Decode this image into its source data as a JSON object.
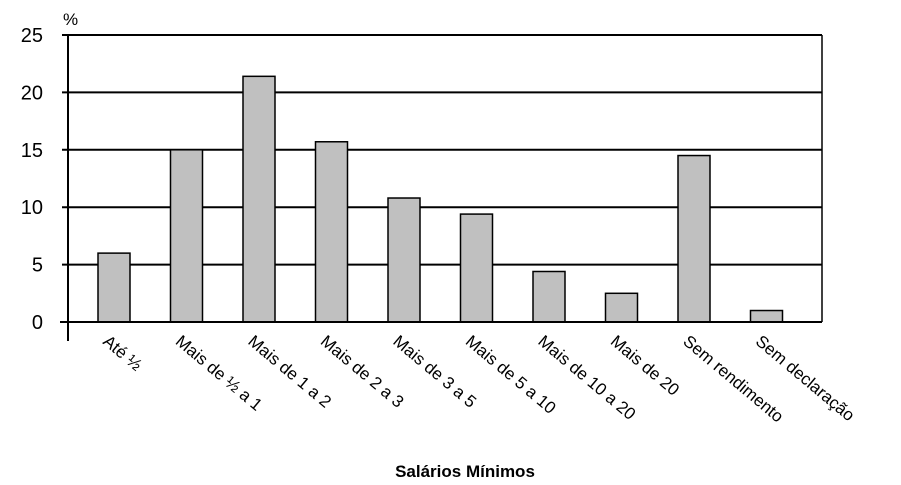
{
  "chart_data": {
    "type": "bar",
    "title": "",
    "ylabel": "%",
    "xlabel": "Salários Mínimos",
    "ylim": [
      0,
      25
    ],
    "yticks": [
      0,
      5,
      10,
      15,
      20,
      25
    ],
    "ytick_labels": [
      "0",
      "5",
      "10",
      "15",
      "20",
      "25"
    ],
    "grid": true,
    "categories": [
      "Até ½",
      "Mais de ½ a 1",
      "Mais de 1 a 2",
      "Mais de 2 a 3",
      "Mais de 3 a 5",
      "Mais de 5 a 10",
      "Mais de 10 a 20",
      "Mais de 20",
      "Sem rendimento",
      "Sem declaração"
    ],
    "values": [
      6.0,
      15.0,
      21.4,
      15.7,
      10.8,
      9.4,
      4.4,
      2.5,
      14.5,
      1.0
    ],
    "colors": {
      "bar": "#c0c0c0",
      "stroke": "#000000"
    }
  }
}
